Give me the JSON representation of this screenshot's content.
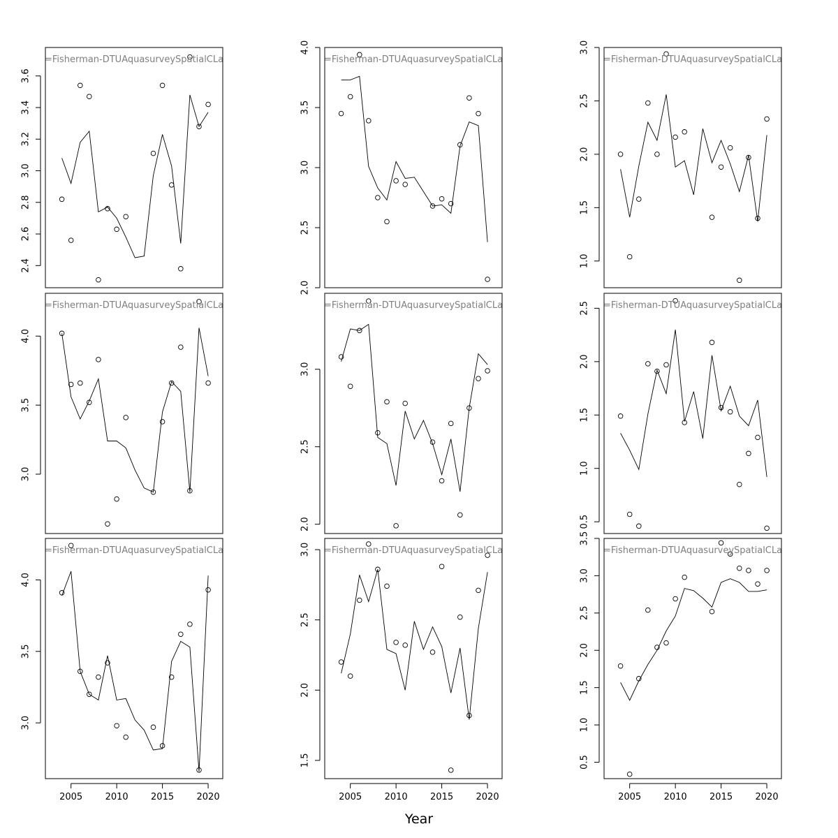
{
  "figure": {
    "xlabel": "Year",
    "x_ticks": [
      2005,
      2010,
      2015,
      2020
    ],
    "annotation": "=Fisherman-DTUAquasurveySpatialCLa"
  },
  "chart_data": [
    {
      "type": "scatter",
      "row": 1,
      "col": 1,
      "annotation": "=Fisherman-DTUAquasurveySpatialCLa",
      "xlim": [
        2002.2,
        2021.6
      ],
      "ylim": [
        2.26,
        3.78
      ],
      "y_ticks": [
        2.4,
        2.6,
        2.8,
        3.0,
        3.2,
        3.4,
        3.6
      ],
      "points": [
        [
          2004,
          2.82
        ],
        [
          2005,
          2.56
        ],
        [
          2006,
          3.54
        ],
        [
          2007,
          3.47
        ],
        [
          2008,
          2.31
        ],
        [
          2009,
          2.76
        ],
        [
          2010,
          2.63
        ],
        [
          2011,
          2.71
        ],
        [
          2014,
          3.11
        ],
        [
          2015,
          3.54
        ],
        [
          2016,
          2.91
        ],
        [
          2017,
          2.38
        ],
        [
          2018,
          3.72
        ],
        [
          2019,
          3.28
        ],
        [
          2020,
          3.42
        ]
      ],
      "line": [
        [
          2004,
          3.08
        ],
        [
          2005,
          2.92
        ],
        [
          2006,
          3.18
        ],
        [
          2007,
          3.25
        ],
        [
          2008,
          2.74
        ],
        [
          2009,
          2.77
        ],
        [
          2010,
          2.7
        ],
        [
          2011,
          2.58
        ],
        [
          2012,
          2.45
        ],
        [
          2013,
          2.46
        ],
        [
          2014,
          2.97
        ],
        [
          2015,
          3.23
        ],
        [
          2016,
          3.03
        ],
        [
          2017,
          2.54
        ],
        [
          2018,
          3.48
        ],
        [
          2019,
          3.28
        ],
        [
          2020,
          3.37
        ]
      ]
    },
    {
      "type": "scatter",
      "row": 1,
      "col": 2,
      "annotation": "=Fisherman-DTUAquasurveySpatialCLa",
      "xlim": [
        2002.2,
        2021.6
      ],
      "ylim": [
        2.0,
        4.0
      ],
      "y_ticks": [
        2.0,
        2.5,
        3.0,
        3.5,
        4.0
      ],
      "points": [
        [
          2004,
          3.45
        ],
        [
          2005,
          3.59
        ],
        [
          2006,
          3.94
        ],
        [
          2007,
          3.39
        ],
        [
          2008,
          2.75
        ],
        [
          2009,
          2.55
        ],
        [
          2010,
          2.89
        ],
        [
          2011,
          2.86
        ],
        [
          2014,
          2.68
        ],
        [
          2015,
          2.74
        ],
        [
          2016,
          2.7
        ],
        [
          2017,
          3.19
        ],
        [
          2018,
          3.58
        ],
        [
          2019,
          3.45
        ],
        [
          2020,
          2.07
        ]
      ],
      "line": [
        [
          2004,
          3.73
        ],
        [
          2005,
          3.73
        ],
        [
          2006,
          3.76
        ],
        [
          2007,
          3.01
        ],
        [
          2008,
          2.83
        ],
        [
          2009,
          2.73
        ],
        [
          2010,
          3.05
        ],
        [
          2011,
          2.91
        ],
        [
          2012,
          2.92
        ],
        [
          2013,
          2.8
        ],
        [
          2014,
          2.68
        ],
        [
          2015,
          2.69
        ],
        [
          2016,
          2.62
        ],
        [
          2017,
          3.18
        ],
        [
          2018,
          3.38
        ],
        [
          2019,
          3.35
        ],
        [
          2020,
          2.38
        ]
      ]
    },
    {
      "type": "scatter",
      "row": 1,
      "col": 3,
      "annotation": "=Fisherman-DTUAquasurveySpatialCLa",
      "xlim": [
        2002.2,
        2021.6
      ],
      "ylim": [
        0.75,
        3.0
      ],
      "y_ticks": [
        1.0,
        1.5,
        2.0,
        2.5,
        3.0
      ],
      "points": [
        [
          2004,
          2.0
        ],
        [
          2005,
          1.04
        ],
        [
          2006,
          1.58
        ],
        [
          2007,
          2.48
        ],
        [
          2008,
          2.0
        ],
        [
          2009,
          2.94
        ],
        [
          2010,
          2.16
        ],
        [
          2011,
          2.21
        ],
        [
          2014,
          1.41
        ],
        [
          2015,
          1.88
        ],
        [
          2016,
          2.06
        ],
        [
          2017,
          0.82
        ],
        [
          2018,
          1.97
        ],
        [
          2019,
          1.4
        ],
        [
          2020,
          2.33
        ]
      ],
      "line": [
        [
          2004,
          1.86
        ],
        [
          2005,
          1.41
        ],
        [
          2006,
          1.89
        ],
        [
          2007,
          2.3
        ],
        [
          2008,
          2.13
        ],
        [
          2009,
          2.56
        ],
        [
          2010,
          1.88
        ],
        [
          2011,
          1.94
        ],
        [
          2012,
          1.62
        ],
        [
          2013,
          2.24
        ],
        [
          2014,
          1.92
        ],
        [
          2015,
          2.13
        ],
        [
          2016,
          1.91
        ],
        [
          2017,
          1.65
        ],
        [
          2018,
          1.99
        ],
        [
          2019,
          1.37
        ],
        [
          2020,
          2.18
        ]
      ]
    },
    {
      "type": "scatter",
      "row": 2,
      "col": 1,
      "annotation": "=Fisherman-DTUAquasurveySpatialCLa",
      "xlim": [
        2002.2,
        2021.6
      ],
      "ylim": [
        2.57,
        4.31
      ],
      "y_ticks": [
        3.0,
        3.5,
        4.0
      ],
      "points": [
        [
          2004,
          4.02
        ],
        [
          2005,
          3.65
        ],
        [
          2006,
          3.66
        ],
        [
          2007,
          3.52
        ],
        [
          2008,
          3.83
        ],
        [
          2009,
          2.64
        ],
        [
          2010,
          2.82
        ],
        [
          2011,
          3.41
        ],
        [
          2014,
          2.87
        ],
        [
          2015,
          3.38
        ],
        [
          2016,
          3.66
        ],
        [
          2017,
          3.92
        ],
        [
          2018,
          2.88
        ],
        [
          2019,
          4.25
        ],
        [
          2020,
          3.66
        ]
      ],
      "line": [
        [
          2004,
          4.02
        ],
        [
          2005,
          3.56
        ],
        [
          2006,
          3.4
        ],
        [
          2007,
          3.53
        ],
        [
          2008,
          3.69
        ],
        [
          2009,
          3.24
        ],
        [
          2010,
          3.24
        ],
        [
          2011,
          3.19
        ],
        [
          2012,
          3.03
        ],
        [
          2013,
          2.9
        ],
        [
          2014,
          2.87
        ],
        [
          2015,
          3.45
        ],
        [
          2016,
          3.67
        ],
        [
          2017,
          3.6
        ],
        [
          2018,
          2.87
        ],
        [
          2019,
          4.06
        ],
        [
          2020,
          3.71
        ]
      ]
    },
    {
      "type": "scatter",
      "row": 2,
      "col": 2,
      "annotation": "=Fisherman-DTUAquasurveySpatialCLa",
      "xlim": [
        2002.2,
        2021.6
      ],
      "ylim": [
        1.94,
        3.49
      ],
      "y_ticks": [
        2.0,
        2.5,
        3.0
      ],
      "points": [
        [
          2004,
          3.08
        ],
        [
          2005,
          2.89
        ],
        [
          2006,
          3.25
        ],
        [
          2007,
          3.44
        ],
        [
          2008,
          2.59
        ],
        [
          2009,
          2.79
        ],
        [
          2010,
          1.99
        ],
        [
          2011,
          2.78
        ],
        [
          2014,
          2.53
        ],
        [
          2015,
          2.28
        ],
        [
          2016,
          2.65
        ],
        [
          2017,
          2.06
        ],
        [
          2018,
          2.75
        ],
        [
          2019,
          2.94
        ],
        [
          2020,
          2.99
        ]
      ],
      "line": [
        [
          2004,
          3.05
        ],
        [
          2005,
          3.26
        ],
        [
          2006,
          3.25
        ],
        [
          2007,
          3.29
        ],
        [
          2008,
          2.56
        ],
        [
          2009,
          2.52
        ],
        [
          2010,
          2.25
        ],
        [
          2011,
          2.73
        ],
        [
          2012,
          2.55
        ],
        [
          2013,
          2.67
        ],
        [
          2014,
          2.52
        ],
        [
          2015,
          2.32
        ],
        [
          2016,
          2.55
        ],
        [
          2017,
          2.21
        ],
        [
          2018,
          2.75
        ],
        [
          2019,
          3.1
        ],
        [
          2020,
          3.03
        ]
      ]
    },
    {
      "type": "scatter",
      "row": 2,
      "col": 3,
      "annotation": "=Fisherman-DTUAquasurveySpatialCLa",
      "xlim": [
        2002.2,
        2021.6
      ],
      "ylim": [
        0.39,
        2.64
      ],
      "y_ticks": [
        0.5,
        1.0,
        1.5,
        2.0,
        2.5
      ],
      "points": [
        [
          2004,
          1.49
        ],
        [
          2005,
          0.57
        ],
        [
          2006,
          0.46
        ],
        [
          2007,
          1.98
        ],
        [
          2008,
          1.91
        ],
        [
          2009,
          1.97
        ],
        [
          2010,
          2.57
        ],
        [
          2011,
          1.43
        ],
        [
          2014,
          2.18
        ],
        [
          2015,
          1.57
        ],
        [
          2016,
          1.53
        ],
        [
          2017,
          0.85
        ],
        [
          2018,
          1.14
        ],
        [
          2019,
          1.29
        ],
        [
          2020,
          0.44
        ]
      ],
      "line": [
        [
          2004,
          1.33
        ],
        [
          2005,
          1.17
        ],
        [
          2006,
          0.99
        ],
        [
          2007,
          1.51
        ],
        [
          2008,
          1.92
        ],
        [
          2009,
          1.7
        ],
        [
          2010,
          2.3
        ],
        [
          2011,
          1.44
        ],
        [
          2012,
          1.72
        ],
        [
          2013,
          1.28
        ],
        [
          2014,
          2.06
        ],
        [
          2015,
          1.54
        ],
        [
          2016,
          1.77
        ],
        [
          2017,
          1.49
        ],
        [
          2018,
          1.4
        ],
        [
          2019,
          1.64
        ],
        [
          2020,
          0.92
        ]
      ]
    },
    {
      "type": "scatter",
      "row": 3,
      "col": 1,
      "annotation": "=Fisherman-DTUAquasurveySpatialCLa",
      "xlim": [
        2002.2,
        2021.6
      ],
      "ylim": [
        2.61,
        4.29
      ],
      "y_ticks": [
        3.0,
        3.5,
        4.0
      ],
      "points": [
        [
          2004,
          3.91
        ],
        [
          2005,
          4.24
        ],
        [
          2006,
          3.36
        ],
        [
          2007,
          3.2
        ],
        [
          2008,
          3.32
        ],
        [
          2009,
          3.42
        ],
        [
          2010,
          2.98
        ],
        [
          2011,
          2.9
        ],
        [
          2014,
          2.97
        ],
        [
          2015,
          2.84
        ],
        [
          2016,
          3.32
        ],
        [
          2017,
          3.62
        ],
        [
          2018,
          3.69
        ],
        [
          2019,
          2.67
        ],
        [
          2020,
          3.93
        ]
      ],
      "line": [
        [
          2004,
          3.89
        ],
        [
          2005,
          4.06
        ],
        [
          2006,
          3.36
        ],
        [
          2007,
          3.2
        ],
        [
          2008,
          3.16
        ],
        [
          2009,
          3.47
        ],
        [
          2010,
          3.16
        ],
        [
          2011,
          3.17
        ],
        [
          2012,
          3.02
        ],
        [
          2013,
          2.95
        ],
        [
          2014,
          2.81
        ],
        [
          2015,
          2.82
        ],
        [
          2016,
          3.43
        ],
        [
          2017,
          3.57
        ],
        [
          2018,
          3.53
        ],
        [
          2019,
          2.66
        ],
        [
          2020,
          4.03
        ]
      ]
    },
    {
      "type": "scatter",
      "row": 3,
      "col": 2,
      "annotation": "=Fisherman-DTUAquasurveySpatialCLa",
      "xlim": [
        2002.2,
        2021.6
      ],
      "ylim": [
        1.37,
        3.08
      ],
      "y_ticks": [
        1.5,
        2.0,
        2.5,
        3.0
      ],
      "points": [
        [
          2004,
          2.2
        ],
        [
          2005,
          2.1
        ],
        [
          2006,
          2.64
        ],
        [
          2007,
          3.04
        ],
        [
          2008,
          2.86
        ],
        [
          2009,
          2.74
        ],
        [
          2010,
          2.34
        ],
        [
          2011,
          2.32
        ],
        [
          2014,
          2.27
        ],
        [
          2015,
          2.88
        ],
        [
          2016,
          1.43
        ],
        [
          2017,
          2.52
        ],
        [
          2018,
          1.82
        ],
        [
          2019,
          2.71
        ],
        [
          2020,
          2.96
        ]
      ],
      "line": [
        [
          2004,
          2.12
        ],
        [
          2005,
          2.4
        ],
        [
          2006,
          2.82
        ],
        [
          2007,
          2.63
        ],
        [
          2008,
          2.86
        ],
        [
          2009,
          2.29
        ],
        [
          2010,
          2.26
        ],
        [
          2011,
          2.0
        ],
        [
          2012,
          2.49
        ],
        [
          2013,
          2.29
        ],
        [
          2014,
          2.45
        ],
        [
          2015,
          2.31
        ],
        [
          2016,
          1.98
        ],
        [
          2017,
          2.3
        ],
        [
          2018,
          1.79
        ],
        [
          2019,
          2.44
        ],
        [
          2020,
          2.84
        ]
      ]
    },
    {
      "type": "scatter",
      "row": 3,
      "col": 3,
      "annotation": "=Fisherman-DTUAquasurveySpatialCLa",
      "xlim": [
        2002.2,
        2021.6
      ],
      "ylim": [
        0.28,
        3.5
      ],
      "y_ticks": [
        0.5,
        1.0,
        1.5,
        2.0,
        2.5,
        3.0,
        3.5
      ],
      "points": [
        [
          2004,
          1.79
        ],
        [
          2005,
          0.34
        ],
        [
          2006,
          1.62
        ],
        [
          2007,
          2.54
        ],
        [
          2008,
          2.04
        ],
        [
          2009,
          2.1
        ],
        [
          2010,
          2.69
        ],
        [
          2011,
          2.98
        ],
        [
          2014,
          2.52
        ],
        [
          2015,
          3.44
        ],
        [
          2016,
          3.29
        ],
        [
          2017,
          3.1
        ],
        [
          2018,
          3.07
        ],
        [
          2019,
          2.89
        ],
        [
          2020,
          3.07
        ]
      ],
      "line": [
        [
          2004,
          1.57
        ],
        [
          2005,
          1.33
        ],
        [
          2006,
          1.59
        ],
        [
          2007,
          1.81
        ],
        [
          2008,
          2.0
        ],
        [
          2009,
          2.26
        ],
        [
          2010,
          2.46
        ],
        [
          2011,
          2.83
        ],
        [
          2012,
          2.8
        ],
        [
          2013,
          2.7
        ],
        [
          2014,
          2.58
        ],
        [
          2015,
          2.91
        ],
        [
          2016,
          2.96
        ],
        [
          2017,
          2.91
        ],
        [
          2018,
          2.79
        ],
        [
          2019,
          2.79
        ],
        [
          2020,
          2.81
        ]
      ]
    }
  ]
}
